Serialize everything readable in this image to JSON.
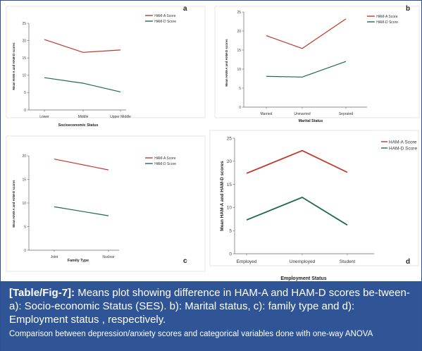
{
  "caption": {
    "label": "[Table/Fig-7]:",
    "text": " Means plot showing difference in HAM-A and HAM-D scores be-tween- a): Socio-economic Status (SES). b): Marital status, c): family type  and d): Employment status , respectively.",
    "note": "Comparison between depression/anxiety scores and categorical variables done with one-way ANOVA"
  },
  "colors": {
    "ham_a": "#c0392b",
    "ham_d": "#1f6b4f",
    "caption_bg": "#2f5597",
    "axis": "#666666"
  },
  "chart_data": [
    {
      "panel": "a",
      "type": "line",
      "categories": [
        "Lower",
        "Middle",
        "Upper Middle"
      ],
      "series": [
        {
          "name": "HAM-A Score",
          "values": [
            20.3,
            16.6,
            17.3
          ]
        },
        {
          "name": "HAM-D Score",
          "values": [
            9.3,
            7.7,
            5.2
          ]
        }
      ],
      "xlabel": "Socioeconomic Status",
      "ylabel": "Mean HAM-A and HAM-D scores",
      "ylim": [
        0,
        25
      ],
      "yticks": [
        0,
        5,
        10,
        15,
        20,
        25
      ],
      "legend": "top-right",
      "grid": false
    },
    {
      "panel": "b",
      "type": "line",
      "categories": [
        "Married",
        "Unmarried",
        "Seprated"
      ],
      "series": [
        {
          "name": "HAM-A Score",
          "values": [
            18.8,
            15.4,
            23.2
          ]
        },
        {
          "name": "HAM-D Score",
          "values": [
            8.1,
            7.9,
            12.0
          ]
        }
      ],
      "xlabel": "Marital Status",
      "ylabel": "Mean HAM-A and HAM-D scores",
      "ylim": [
        0,
        25
      ],
      "yticks": [
        0,
        5,
        10,
        15,
        20,
        25
      ],
      "legend": "top-right",
      "grid": false
    },
    {
      "panel": "c",
      "type": "line",
      "categories": [
        "Joint",
        "Nuclear"
      ],
      "series": [
        {
          "name": "HAM-A Score",
          "values": [
            19.3,
            17.0
          ]
        },
        {
          "name": "HAM-D Score",
          "values": [
            9.2,
            7.3
          ]
        }
      ],
      "xlabel": "Family Type",
      "ylabel": "Mean HAM-A and HAM-D scores",
      "ylim": [
        0,
        20
      ],
      "yticks": [
        0,
        5,
        10,
        15,
        20
      ],
      "legend": "top-right",
      "grid": false
    },
    {
      "panel": "d",
      "type": "line",
      "categories": [
        "Employed",
        "Unemployed",
        "Student"
      ],
      "series": [
        {
          "name": "HAM-A Score",
          "values": [
            17.4,
            22.3,
            17.6
          ]
        },
        {
          "name": "HAM-D Score",
          "values": [
            7.3,
            12.2,
            6.2
          ]
        }
      ],
      "xlabel": "Employment Status",
      "ylabel": "Mean HAM-A and HAM-D scores",
      "ylim": [
        0,
        25
      ],
      "yticks": [
        0,
        5,
        10,
        15,
        20,
        25
      ],
      "legend": "top-right",
      "grid": false
    }
  ]
}
